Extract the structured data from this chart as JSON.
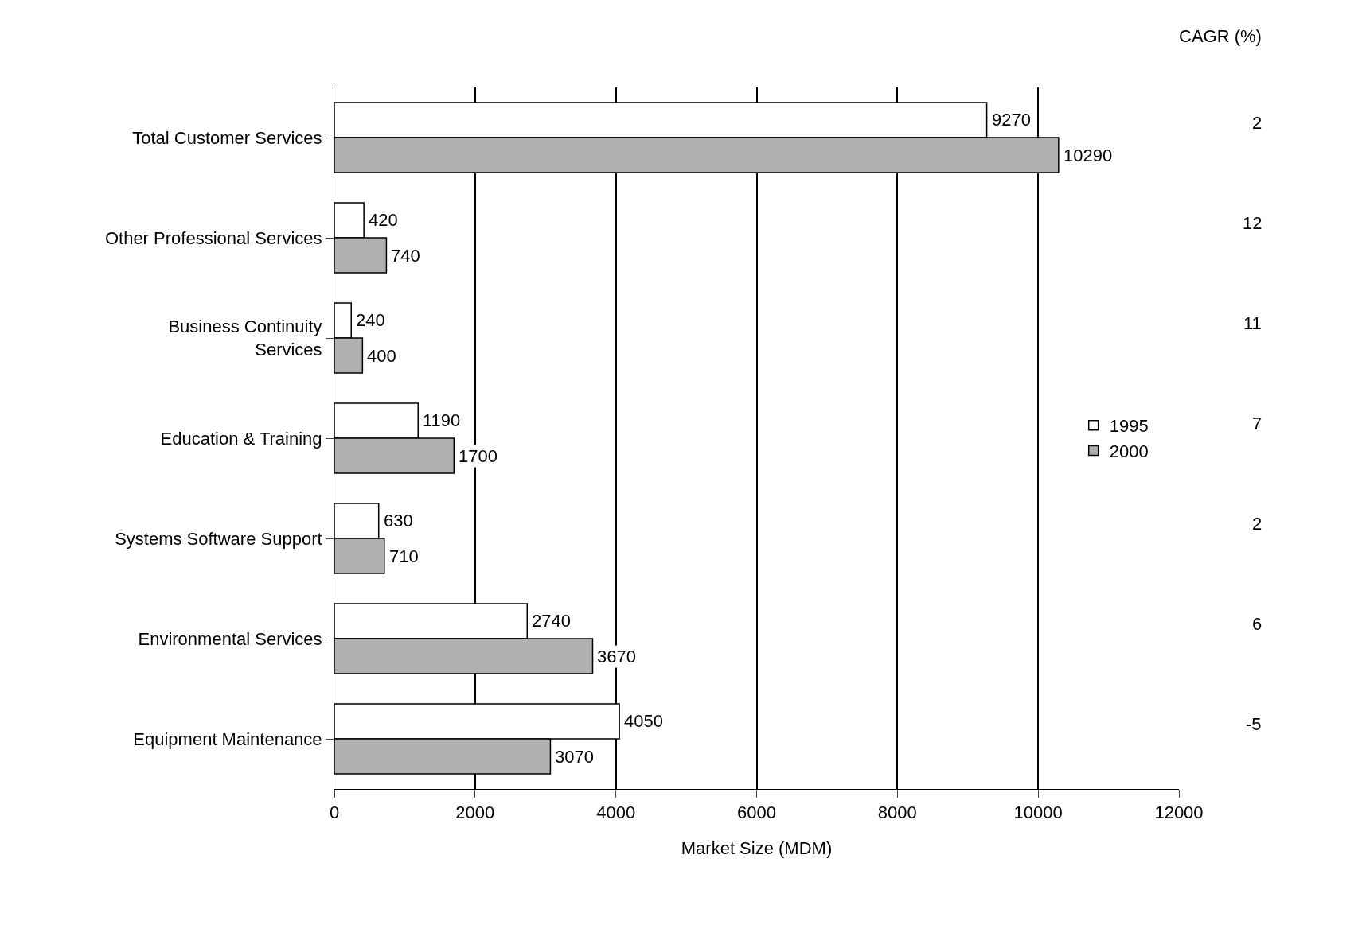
{
  "chart_data": {
    "type": "bar",
    "orientation": "horizontal",
    "categories": [
      "Total Customer Services",
      "Other Professional Services",
      "Business Continuity Services",
      "Education & Training",
      "Systems Software Support",
      "Environmental Services",
      "Equipment Maintenance"
    ],
    "series": [
      {
        "name": "1995",
        "color": "#ffffff",
        "values": [
          9270,
          420,
          240,
          1190,
          630,
          2740,
          4050
        ]
      },
      {
        "name": "2000",
        "color": "#b0b0b0",
        "values": [
          10290,
          740,
          400,
          1700,
          710,
          3670,
          3070
        ]
      }
    ],
    "xlabel": "Market Size (MDM)",
    "xlim": [
      0,
      12000
    ],
    "xticks": [
      0,
      2000,
      4000,
      6000,
      8000,
      10000,
      12000
    ],
    "grid": "x",
    "legend": "right",
    "data_labels": true,
    "annotations": [
      "CAGR (%)",
      "2",
      "12",
      "11",
      "7",
      "2",
      "6",
      "-5"
    ]
  }
}
